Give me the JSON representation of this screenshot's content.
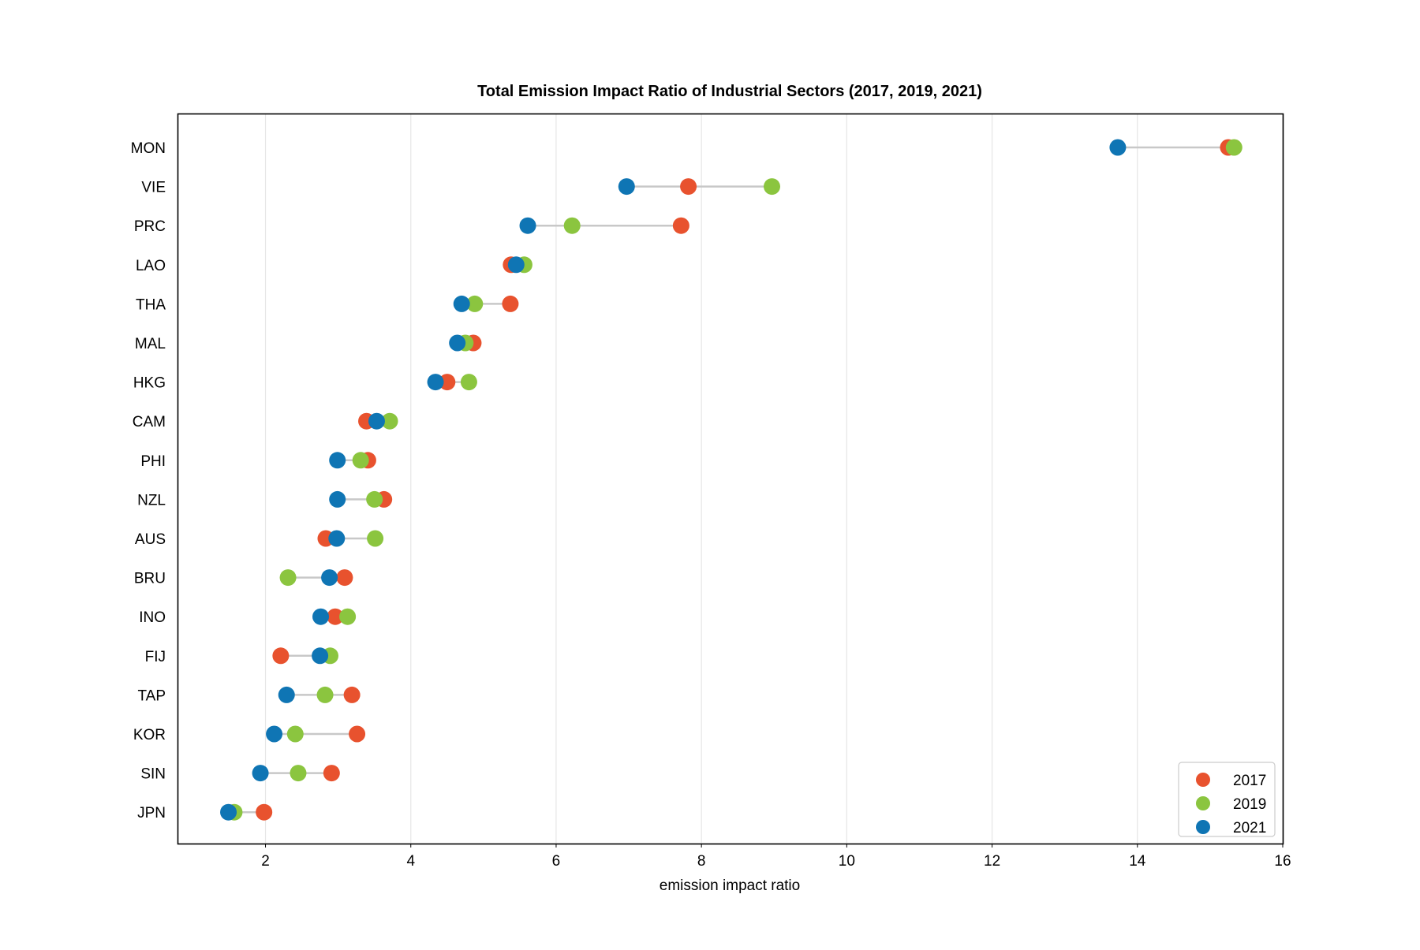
{
  "chart_data": {
    "type": "scatter",
    "subtype": "dumbbell",
    "title": "Total Emission Impact Ratio of Industrial Sectors (2017, 2019, 2021)",
    "xlabel": "emission impact ratio",
    "ylabel": "",
    "xlim": [
      0.8,
      16
    ],
    "xticks": [
      2,
      4,
      6,
      8,
      10,
      12,
      14,
      16
    ],
    "grid": "vertical",
    "legend_position": "lower right",
    "categories": [
      "MON",
      "VIE",
      "PRC",
      "LAO",
      "THA",
      "MAL",
      "HKG",
      "CAM",
      "PHI",
      "NZL",
      "AUS",
      "BRU",
      "INO",
      "FIJ",
      "TAP",
      "KOR",
      "SIN",
      "JPN"
    ],
    "series": [
      {
        "name": "2017",
        "color": "#e8522e",
        "values": [
          15.25,
          7.82,
          7.72,
          5.38,
          5.37,
          4.86,
          4.5,
          3.39,
          3.41,
          3.63,
          2.83,
          3.09,
          2.96,
          2.21,
          3.19,
          3.26,
          2.91,
          1.98
        ]
      },
      {
        "name": "2019",
        "color": "#8bc53f",
        "values": [
          15.33,
          8.97,
          6.22,
          5.56,
          4.88,
          4.75,
          4.8,
          3.71,
          3.31,
          3.5,
          3.51,
          2.31,
          3.13,
          2.89,
          2.82,
          2.41,
          2.45,
          1.57
        ]
      },
      {
        "name": "2021",
        "color": "#0f75b4",
        "values": [
          13.73,
          6.97,
          5.61,
          5.45,
          4.7,
          4.64,
          4.34,
          3.53,
          2.99,
          2.99,
          2.98,
          2.88,
          2.76,
          2.75,
          2.29,
          2.12,
          1.93,
          1.49
        ]
      }
    ]
  }
}
